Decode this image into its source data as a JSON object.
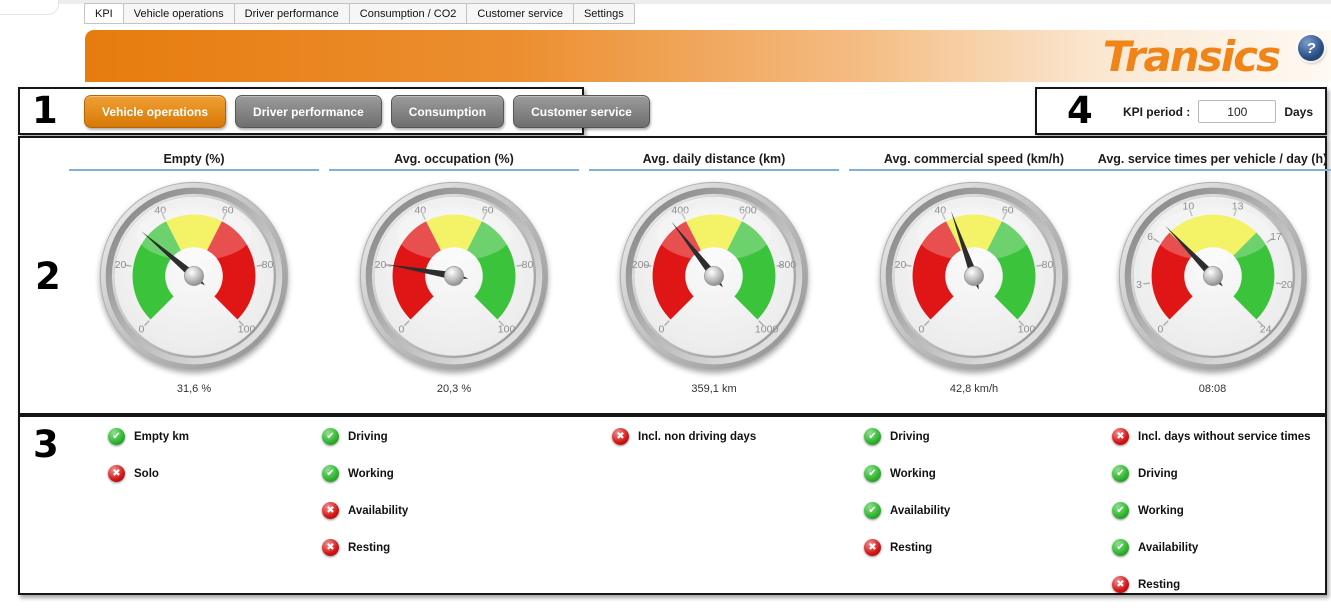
{
  "window": {
    "tabs": [
      {
        "label": "KPI",
        "active": true
      },
      {
        "label": "Vehicle operations",
        "active": false
      },
      {
        "label": "Driver performance",
        "active": false
      },
      {
        "label": "Consumption / CO2",
        "active": false
      },
      {
        "label": "Customer service",
        "active": false
      },
      {
        "label": "Settings",
        "active": false
      }
    ]
  },
  "banner": {
    "logo": "Transics",
    "help": "?"
  },
  "sections": {
    "categories": {
      "number": "1",
      "buttons": [
        {
          "label": "Vehicle operations",
          "active": true
        },
        {
          "label": "Driver performance",
          "active": false
        },
        {
          "label": "Consumption",
          "active": false
        },
        {
          "label": "Customer service",
          "active": false
        }
      ]
    },
    "gauges_number": "2",
    "checklist_number": "3",
    "kpi_period": {
      "number": "4",
      "label": "KPI period :",
      "value": "100",
      "unit": "Days"
    }
  },
  "colors": {
    "accent_orange": "#e4821b",
    "title_underline": "#7fb1dc",
    "status_green": "#2eb42e",
    "status_red": "#d41414"
  },
  "icons": {
    "check": "✔",
    "cross": "✖"
  },
  "chart_data": {
    "type": "gauge-dashboard",
    "note": "see gauges"
  },
  "gauges": [
    {
      "type": "gauge",
      "title": "Empty (%)",
      "min": 0,
      "max": 100,
      "value": 31.6,
      "display": "31,6 %",
      "ticks": [
        {
          "value": 0,
          "label": "0"
        },
        {
          "value": 20,
          "label": "20"
        },
        {
          "value": 40,
          "label": "40"
        },
        {
          "value": 60,
          "label": "60"
        },
        {
          "value": 80,
          "label": "80"
        },
        {
          "value": 100,
          "label": "100"
        }
      ],
      "zones": [
        {
          "from": 0,
          "to": 40,
          "color": "#3cc33c"
        },
        {
          "from": 40,
          "to": 60,
          "color": "#f0ee35"
        },
        {
          "from": 60,
          "to": 100,
          "color": "#e01515"
        }
      ],
      "checks": [
        {
          "label": "Empty km",
          "state": "yes"
        },
        {
          "label": "Solo",
          "state": "no"
        }
      ]
    },
    {
      "type": "gauge",
      "title": "Avg. occupation (%)",
      "min": 0,
      "max": 100,
      "value": 20.3,
      "display": "20,3 %",
      "ticks": [
        {
          "value": 0,
          "label": "0"
        },
        {
          "value": 20,
          "label": "20"
        },
        {
          "value": 40,
          "label": "40"
        },
        {
          "value": 60,
          "label": "60"
        },
        {
          "value": 80,
          "label": "80"
        },
        {
          "value": 100,
          "label": "100"
        }
      ],
      "zones": [
        {
          "from": 0,
          "to": 40,
          "color": "#e01515"
        },
        {
          "from": 40,
          "to": 60,
          "color": "#f0ee35"
        },
        {
          "from": 60,
          "to": 100,
          "color": "#3cc33c"
        }
      ],
      "checks": [
        {
          "label": "Driving",
          "state": "yes"
        },
        {
          "label": "Working",
          "state": "yes"
        },
        {
          "label": "Availability",
          "state": "no"
        },
        {
          "label": "Resting",
          "state": "no"
        }
      ]
    },
    {
      "type": "gauge",
      "title": "Avg. daily distance (km)",
      "min": 0,
      "max": 1000,
      "value": 359.1,
      "display": "359,1 km",
      "ticks": [
        {
          "value": 0,
          "label": "0"
        },
        {
          "value": 200,
          "label": "200"
        },
        {
          "value": 400,
          "label": "400"
        },
        {
          "value": 600,
          "label": "600"
        },
        {
          "value": 800,
          "label": "800"
        },
        {
          "value": 1000,
          "label": "1000"
        }
      ],
      "zones": [
        {
          "from": 0,
          "to": 400,
          "color": "#e01515"
        },
        {
          "from": 400,
          "to": 600,
          "color": "#f0ee35"
        },
        {
          "from": 600,
          "to": 1000,
          "color": "#3cc33c"
        }
      ],
      "checks": [
        {
          "label": "Incl. non driving days",
          "state": "no"
        }
      ]
    },
    {
      "type": "gauge",
      "title": "Avg. commercial speed (km/h)",
      "min": 0,
      "max": 100,
      "value": 42.8,
      "display": "42,8 km/h",
      "ticks": [
        {
          "value": 0,
          "label": "0"
        },
        {
          "value": 20,
          "label": "20"
        },
        {
          "value": 40,
          "label": "40"
        },
        {
          "value": 60,
          "label": "60"
        },
        {
          "value": 80,
          "label": "80"
        },
        {
          "value": 100,
          "label": "100"
        }
      ],
      "zones": [
        {
          "from": 0,
          "to": 40,
          "color": "#e01515"
        },
        {
          "from": 40,
          "to": 60,
          "color": "#f0ee35"
        },
        {
          "from": 60,
          "to": 100,
          "color": "#3cc33c"
        }
      ],
      "checks": [
        {
          "label": "Driving",
          "state": "yes"
        },
        {
          "label": "Working",
          "state": "yes"
        },
        {
          "label": "Availability",
          "state": "yes"
        },
        {
          "label": "Resting",
          "state": "no"
        }
      ]
    },
    {
      "type": "gauge",
      "title": "Avg. service times per vehicle / day (h)",
      "min": 0,
      "max": 24,
      "value": 8.13,
      "display": "08:08",
      "ticks": [
        {
          "value": 0,
          "label": "0"
        },
        {
          "value": 3.4286,
          "label": "3"
        },
        {
          "value": 6.8571,
          "label": "6"
        },
        {
          "value": 10.2857,
          "label": "10"
        },
        {
          "value": 13.7143,
          "label": "13"
        },
        {
          "value": 17.1429,
          "label": "17"
        },
        {
          "value": 20.5714,
          "label": "20"
        },
        {
          "value": 24,
          "label": "24"
        }
      ],
      "zones": [
        {
          "from": 0,
          "to": 8,
          "color": "#e01515"
        },
        {
          "from": 8,
          "to": 16,
          "color": "#f0ee35"
        },
        {
          "from": 16,
          "to": 24,
          "color": "#3cc33c"
        }
      ],
      "checks": [
        {
          "label": "Incl. days without service times",
          "state": "no"
        },
        {
          "label": "Driving",
          "state": "yes"
        },
        {
          "label": "Working",
          "state": "yes"
        },
        {
          "label": "Availability",
          "state": "yes"
        },
        {
          "label": "Resting",
          "state": "no"
        }
      ]
    }
  ]
}
